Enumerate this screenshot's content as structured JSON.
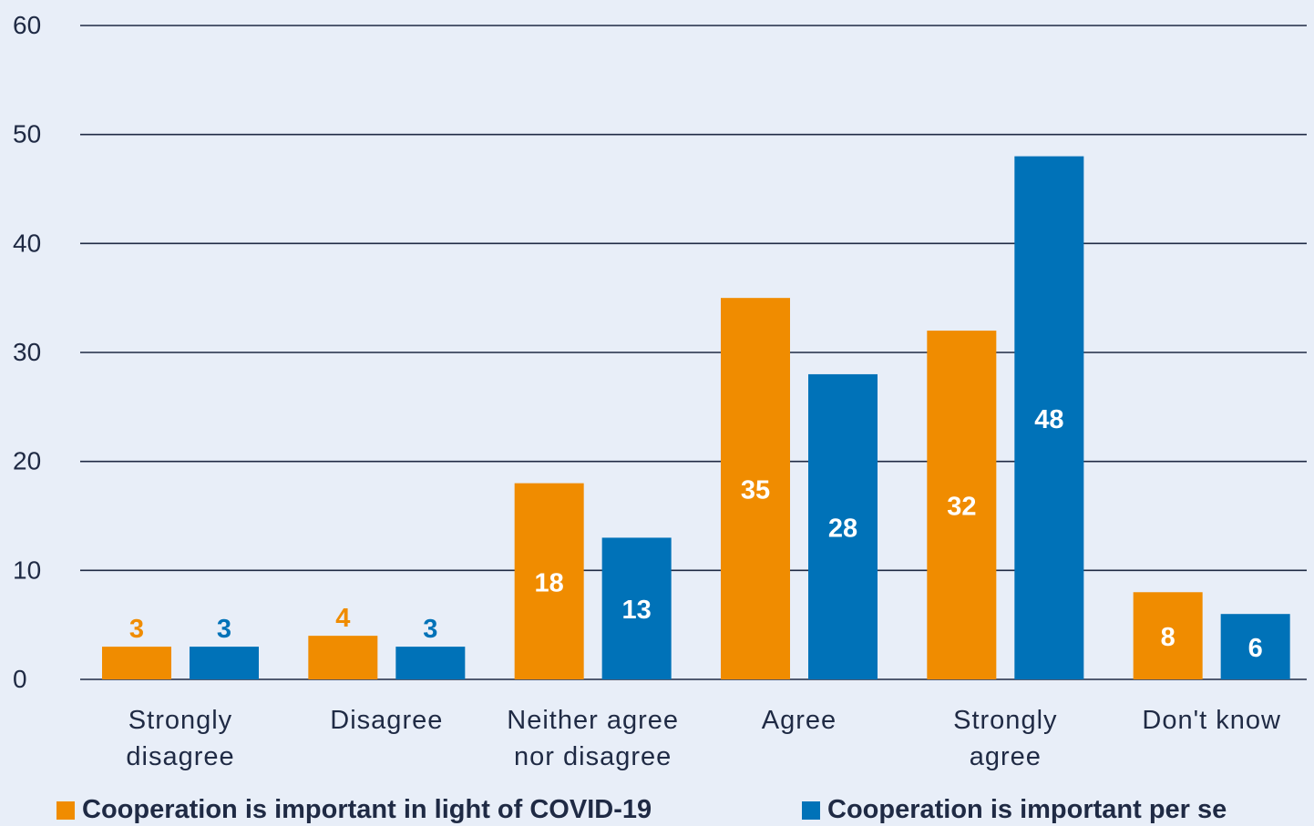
{
  "chart_data": {
    "type": "bar",
    "categories": [
      [
        "Strongly",
        "disagree"
      ],
      [
        "Disagree"
      ],
      [
        "Neither agree",
        "nor disagree"
      ],
      [
        "Agree"
      ],
      [
        "Strongly",
        "agree"
      ],
      [
        "Don't know"
      ]
    ],
    "series": [
      {
        "name": "Cooperation is important in light of COVID-19",
        "values": [
          3,
          4,
          18,
          35,
          32,
          8
        ],
        "color": "#f08c00"
      },
      {
        "name": "Cooperation is important per se",
        "values": [
          3,
          3,
          13,
          28,
          48,
          6
        ],
        "color": "#0072b8"
      }
    ],
    "ylim": [
      0,
      60
    ],
    "yticks": [
      0,
      10,
      20,
      30,
      40,
      50,
      60
    ],
    "grid": true,
    "legend_position": "bottom",
    "small_value_labels": "above bar, series-colored",
    "large_value_labels": "inside bar, white"
  }
}
